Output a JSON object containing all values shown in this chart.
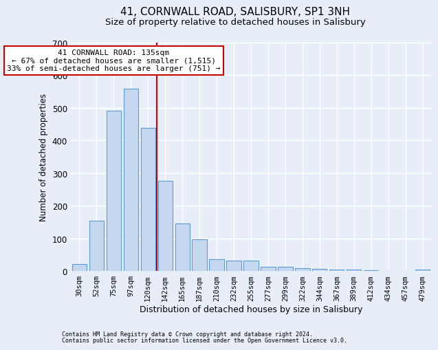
{
  "title": "41, CORNWALL ROAD, SALISBURY, SP1 3NH",
  "subtitle": "Size of property relative to detached houses in Salisbury",
  "xlabel": "Distribution of detached houses by size in Salisbury",
  "ylabel": "Number of detached properties",
  "footnote1": "Contains HM Land Registry data © Crown copyright and database right 2024.",
  "footnote2": "Contains public sector information licensed under the Open Government Licence v3.0.",
  "bar_labels": [
    "30sqm",
    "52sqm",
    "75sqm",
    "97sqm",
    "120sqm",
    "142sqm",
    "165sqm",
    "187sqm",
    "210sqm",
    "232sqm",
    "255sqm",
    "277sqm",
    "299sqm",
    "322sqm",
    "344sqm",
    "367sqm",
    "389sqm",
    "412sqm",
    "434sqm",
    "457sqm",
    "479sqm"
  ],
  "bar_values": [
    22,
    155,
    490,
    558,
    438,
    275,
    145,
    97,
    36,
    33,
    32,
    14,
    14,
    9,
    6,
    5,
    4,
    2,
    1,
    1,
    5
  ],
  "bar_color": "#c5d8f0",
  "bar_edge_color": "#5b9bd5",
  "background_color": "#e8eef8",
  "grid_color": "#ffffff",
  "property_line_x": 4.5,
  "annotation_text1": "41 CORNWALL ROAD: 135sqm",
  "annotation_text2": "← 67% of detached houses are smaller (1,515)",
  "annotation_text3": "33% of semi-detached houses are larger (751) →",
  "annotation_box_color": "#ffffff",
  "annotation_border_color": "#cc0000",
  "vline_color": "#cc0000",
  "ylim": [
    0,
    700
  ],
  "title_fontsize": 11,
  "subtitle_fontsize": 9.5,
  "tick_fontsize": 7.5,
  "ylabel_fontsize": 8.5,
  "xlabel_fontsize": 9,
  "annotation_fontsize": 8,
  "footnote_fontsize": 6
}
